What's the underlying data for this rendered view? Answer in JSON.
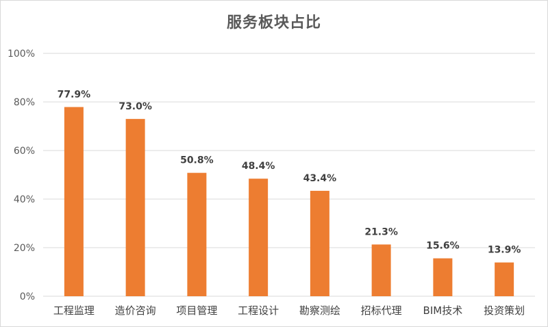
{
  "chart_data": {
    "type": "bar",
    "title": "服务板块占比",
    "xlabel": "",
    "ylabel": "",
    "categories": [
      "工程监理",
      "造价咨询",
      "项目管理",
      "工程设计",
      "勘察测绘",
      "招标代理",
      "BIM技术",
      "投资策划"
    ],
    "values": [
      77.9,
      73.0,
      50.8,
      48.4,
      43.4,
      21.3,
      15.6,
      13.9
    ],
    "data_labels": [
      "77.9%",
      "73.0%",
      "50.8%",
      "48.4%",
      "43.4%",
      "21.3%",
      "15.6%",
      "13.9%"
    ],
    "ylim": [
      0,
      100
    ],
    "y_ticks": [
      0,
      20,
      40,
      60,
      80,
      100
    ],
    "y_tick_labels": [
      "0%",
      "20%",
      "40%",
      "60%",
      "80%",
      "100%"
    ],
    "grid": true,
    "legend": "none",
    "bar_color": "#ED7D31",
    "grid_color": "#d9d9d9"
  }
}
